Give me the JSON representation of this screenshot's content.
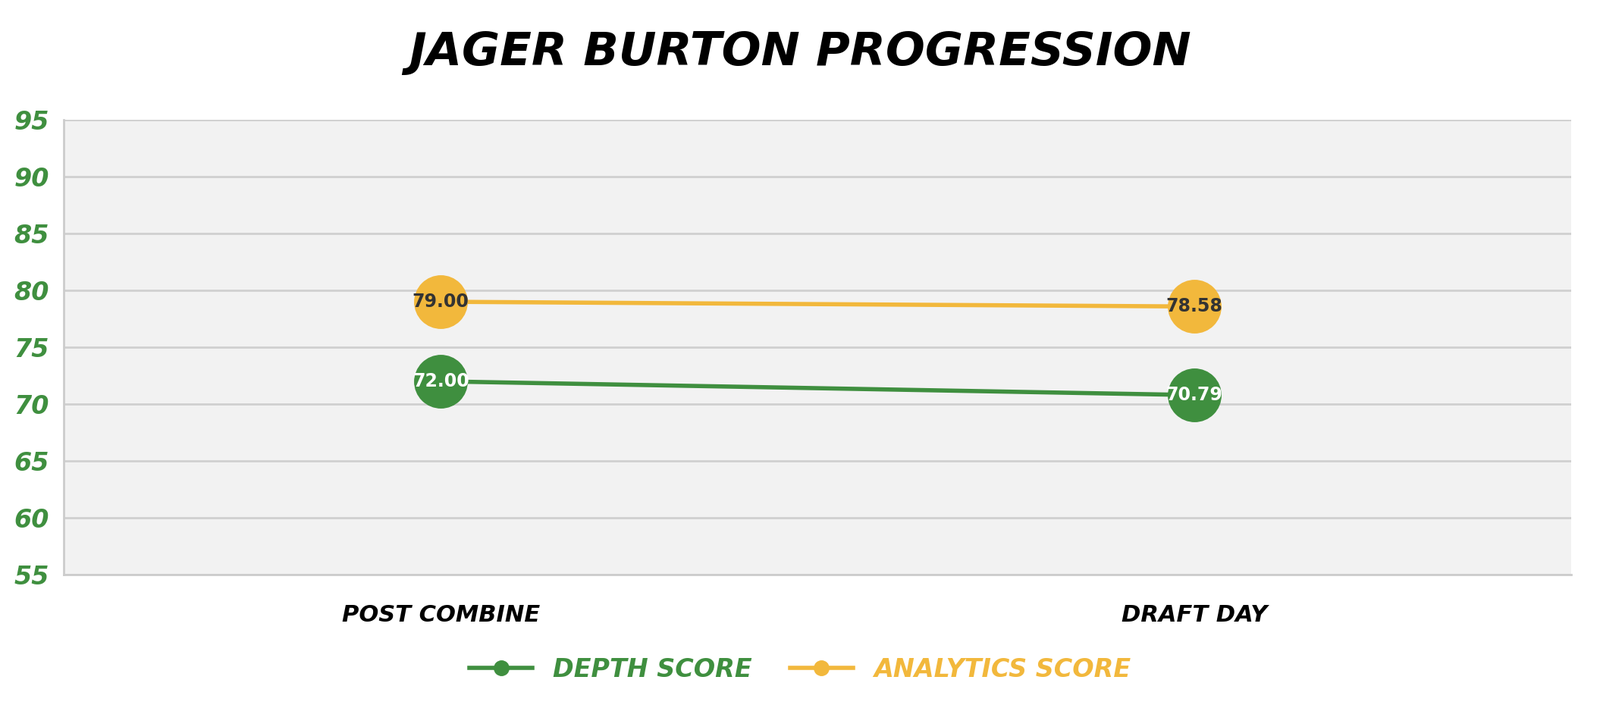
{
  "chart_data": {
    "type": "line",
    "title": "JAGER BURTON PROGRESSION",
    "categories": [
      "POST COMBINE",
      "DRAFT DAY"
    ],
    "series": [
      {
        "name": "DEPTH SCORE",
        "color": "#3f8f3f",
        "values": [
          72.0,
          70.79
        ],
        "value_labels": [
          "72.00",
          "70.79"
        ],
        "marker": "o"
      },
      {
        "name": "ANALYTICS SCORE",
        "color": "#f2b83c",
        "values": [
          79.0,
          78.58
        ],
        "value_labels": [
          "79.00",
          "78.58"
        ],
        "marker": "o"
      }
    ],
    "ylim": [
      55,
      95
    ],
    "yticks": [
      55,
      60,
      65,
      70,
      75,
      80,
      85,
      90,
      95
    ],
    "grid": true,
    "legend": "lower center",
    "data_labels": true
  }
}
